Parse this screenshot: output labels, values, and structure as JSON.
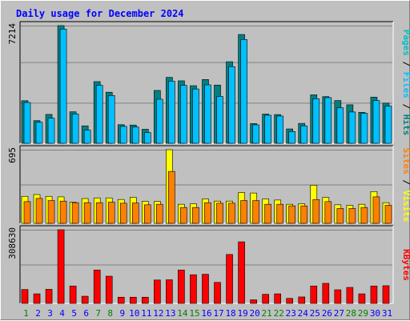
{
  "chart_data": {
    "type": "bar",
    "title": "Daily usage for December 2024",
    "categories": [
      "1",
      "2",
      "3",
      "4",
      "5",
      "6",
      "7",
      "8",
      "9",
      "10",
      "11",
      "12",
      "13",
      "14",
      "15",
      "16",
      "17",
      "18",
      "19",
      "20",
      "21",
      "22",
      "23",
      "24",
      "25",
      "26",
      "27",
      "28",
      "29",
      "30",
      "31"
    ],
    "weekend_days": [
      "1",
      "7",
      "8",
      "14",
      "15",
      "21",
      "22",
      "28",
      "29"
    ],
    "legend_top": [
      "Pages",
      "Files",
      "Hits"
    ],
    "legend_mid": [
      "Sites",
      "Visits"
    ],
    "legend_bottom": [
      "KBytes"
    ],
    "panels": {
      "top": {
        "max_label": "7214",
        "ylim": [
          0,
          7214
        ],
        "series": [
          {
            "name": "Hits",
            "values": [
              2610,
              1390,
              1770,
              7214,
              1930,
              1070,
              3780,
              3130,
              1140,
              1120,
              860,
              3240,
              4040,
              3830,
              3530,
              3910,
              3570,
              5000,
              6670,
              1210,
              1790,
              1760,
              880,
              1220,
              2970,
              2860,
              2620,
              2360,
              1900,
              2830,
              2460
            ],
            "color": "#008080"
          },
          {
            "name": "Files",
            "values": [
              2500,
              1290,
              1540,
              7000,
              1800,
              810,
              3560,
              2930,
              1040,
              1000,
              660,
              2700,
              3810,
              3550,
              3330,
              3580,
              2870,
              4700,
              6360,
              1130,
              1720,
              1670,
              720,
              1070,
              2730,
              2800,
              2180,
              1920,
              1840,
              2620,
              2280
            ],
            "color": "#00c0ff"
          },
          {
            "name": "Pages",
            "values": [],
            "color": "#00bfbf"
          }
        ]
      },
      "middle": {
        "max_label": "695",
        "ylim": [
          0,
          695
        ],
        "series": [
          {
            "name": "Visits",
            "values": [
              255,
              272,
              255,
              250,
              200,
              234,
              240,
              240,
              225,
              245,
              208,
              207,
              695,
              180,
              185,
              230,
              210,
              210,
              290,
              286,
              230,
              220,
              180,
              185,
              360,
              245,
              175,
              170,
              180,
              300,
              195
            ],
            "color": "#ffff00"
          },
          {
            "name": "Sites",
            "values": [
              205,
              235,
              215,
              210,
              195,
              195,
              195,
              200,
              190,
              192,
              175,
              180,
              490,
              150,
              150,
              195,
              190,
              190,
              215,
              215,
              180,
              180,
              165,
              165,
              225,
              205,
              140,
              140,
              150,
              250,
              170
            ],
            "color": "#ff8000"
          }
        ]
      },
      "bottom": {
        "max_label": "308630",
        "ylim": [
          0,
          308630
        ],
        "series": [
          {
            "name": "KBytes",
            "values": [
              58000,
              40000,
              59000,
              308630,
              73000,
              30000,
              140000,
              114000,
              26000,
              26000,
              26000,
              98000,
              99000,
              140000,
              120000,
              122000,
              88000,
              205000,
              258000,
              15000,
              38000,
              40000,
              21000,
              27000,
              73000,
              84000,
              57000,
              67000,
              40000,
              73000,
              74000
            ],
            "color": "#ff0000"
          }
        ]
      }
    }
  },
  "colors": {
    "background": "#c0c0c0",
    "plot_background": "#c0c0c0",
    "title": "#0000ff",
    "weekday_label": "#0000ff",
    "weekend_label": "#008000",
    "hits": "#008080",
    "files": "#00c0ff",
    "pages": "#00bfbf",
    "visits": "#ffff00",
    "sites": "#ff8000",
    "kbytes": "#ff0000",
    "gridline": "#808080"
  }
}
